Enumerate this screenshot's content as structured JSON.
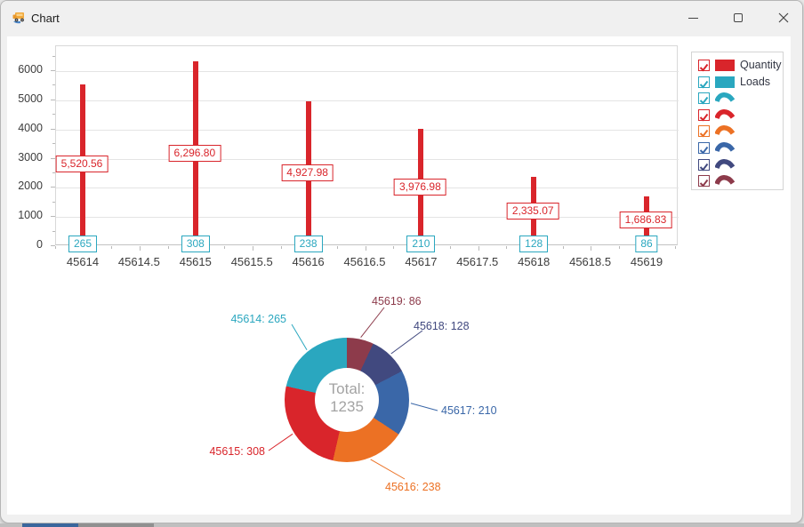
{
  "window": {
    "title": "Chart"
  },
  "legend": {
    "items": [
      {
        "label": "Quantity",
        "marker": "square",
        "color": "#d9252b",
        "checked": true
      },
      {
        "label": "Loads",
        "marker": "square",
        "color": "#2aa7bf",
        "checked": true
      },
      {
        "label": "",
        "marker": "arc",
        "color": "#2aa7bf",
        "checked": true
      },
      {
        "label": "",
        "marker": "arc",
        "color": "#d9252b",
        "checked": true
      },
      {
        "label": "",
        "marker": "arc",
        "color": "#ec7124",
        "checked": true
      },
      {
        "label": "",
        "marker": "arc",
        "color": "#3a67a8",
        "checked": true
      },
      {
        "label": "",
        "marker": "arc",
        "color": "#41497f",
        "checked": true
      },
      {
        "label": "",
        "marker": "arc",
        "color": "#8d3b4b",
        "checked": true
      }
    ]
  },
  "chart_data": [
    {
      "type": "bar",
      "categories": [
        "45614",
        "45615",
        "45616",
        "45617",
        "45618",
        "45619"
      ],
      "series": [
        {
          "name": "Quantity",
          "color": "#d9252b",
          "values": [
            5520.56,
            6296.8,
            4927.98,
            3976.98,
            2335.07,
            1686.83
          ],
          "point_labels": [
            "5,520.56",
            "6,296.80",
            "4,927.98",
            "3,976.98",
            "2,335.07",
            "1,686.83"
          ]
        },
        {
          "name": "Loads",
          "color": "#2aa7bf",
          "values": [
            265,
            308,
            238,
            210,
            128,
            86
          ],
          "point_labels": [
            "265",
            "308",
            "238",
            "210",
            "128",
            "86"
          ]
        }
      ],
      "x_tick_labels": [
        "45614",
        "45614.5",
        "45615",
        "45615.5",
        "45616",
        "45616.5",
        "45617",
        "45617.5",
        "45618",
        "45618.5",
        "45619"
      ],
      "y_tick_labels": [
        "0",
        "1000",
        "2000",
        "3000",
        "4000",
        "5000",
        "6000"
      ],
      "ylim": [
        0,
        6850
      ],
      "grid": "horizontal-only",
      "legend_position": "top-right"
    },
    {
      "type": "donut",
      "center_label_line1": "Total:",
      "center_label_line2": "1235",
      "total": 1235,
      "direction": "counterclockwise-from-top",
      "slices": [
        {
          "category": "45614",
          "value": 265,
          "label": "45614: 265",
          "color": "#2aa7bf"
        },
        {
          "category": "45615",
          "value": 308,
          "label": "45615: 308",
          "color": "#d9252b"
        },
        {
          "category": "45616",
          "value": 238,
          "label": "45616: 238",
          "color": "#ec7124"
        },
        {
          "category": "45617",
          "value": 210,
          "label": "45617: 210",
          "color": "#3a67a8"
        },
        {
          "category": "45618",
          "value": 128,
          "label": "45618: 128",
          "color": "#41497f"
        },
        {
          "category": "45619",
          "value": 86,
          "label": "45619: 86",
          "color": "#8d3b4b"
        }
      ]
    }
  ]
}
